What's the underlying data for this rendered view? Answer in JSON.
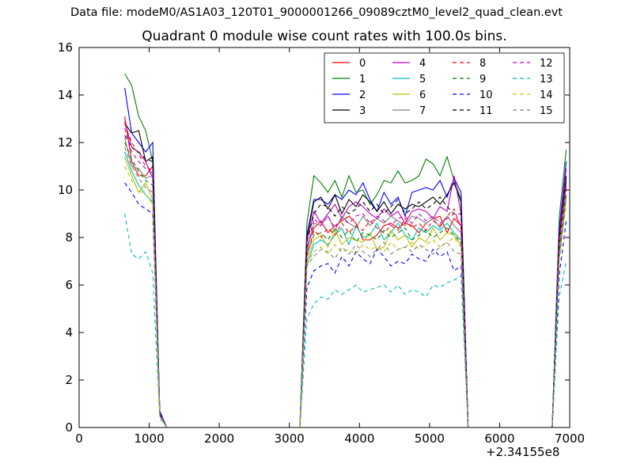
{
  "figure": {
    "suptitle": "Data file: modeM0/AS1A03_120T01_9000001266_09089cztM0_level2_quad_clean.evt",
    "title": "Quadrant 0 module wise count rates with 100.0s bins.",
    "offset_text": "+2.34155e8"
  },
  "chart_data": {
    "type": "line",
    "xlim": [
      0,
      7000
    ],
    "ylim": [
      0,
      16
    ],
    "x_ticks": [
      "0",
      "1000",
      "2000",
      "3000",
      "4000",
      "5000",
      "6000",
      "7000"
    ],
    "y_ticks": [
      "0",
      "2",
      "4",
      "6",
      "8",
      "10",
      "12",
      "14",
      "16"
    ],
    "x_offset": "+2.34155e8",
    "legend_position": "top-right",
    "grid": false,
    "segments": {
      "a": [
        650,
        750,
        850,
        950,
        1050,
        1150,
        1250
      ],
      "b": [
        3150,
        3250,
        3350,
        3450,
        3550,
        3650,
        3750,
        3850,
        3950,
        4050,
        4150,
        4250,
        4350,
        4450,
        4550,
        4650,
        4750,
        4850,
        4950,
        5050,
        5150,
        5250,
        5350,
        5450,
        5550
      ],
      "c": [
        6750,
        6850,
        6950
      ]
    },
    "gap_x": [
      1270,
      3130,
      5570,
      6730
    ],
    "series": [
      {
        "name": "0",
        "color": "#ff0000",
        "dash": false,
        "a": [
          13.1,
          11.2,
          10.6,
          10.6,
          11.0,
          0.6,
          0.0
        ],
        "b": [
          0.0,
          7.6,
          8.4,
          8.7,
          8.2,
          8.5,
          8.7,
          8.9,
          8.6,
          7.9,
          7.9,
          8.1,
          8.5,
          8.6,
          8.4,
          8.6,
          8.5,
          8.2,
          8.6,
          8.8,
          8.9,
          8.2,
          8.8,
          8.5,
          0.0
        ],
        "c": [
          0.0,
          7.9,
          10.5
        ]
      },
      {
        "name": "1",
        "color": "#008000",
        "dash": false,
        "a": [
          14.9,
          14.4,
          13.1,
          12.5,
          11.2,
          0.6,
          0.0
        ],
        "b": [
          0.0,
          8.6,
          10.6,
          10.3,
          9.9,
          10.4,
          9.7,
          10.6,
          9.9,
          10.0,
          9.4,
          9.8,
          10.4,
          10.3,
          10.8,
          10.3,
          10.4,
          10.6,
          11.3,
          11.1,
          10.6,
          11.4,
          10.4,
          9.6,
          0.0
        ],
        "c": [
          0.0,
          8.8,
          11.7
        ]
      },
      {
        "name": "2",
        "color": "#0000ff",
        "dash": false,
        "a": [
          14.3,
          12.4,
          12.0,
          11.6,
          12.0,
          0.7,
          0.0
        ],
        "b": [
          0.0,
          8.1,
          9.6,
          9.6,
          9.4,
          9.8,
          9.6,
          10.0,
          9.8,
          10.3,
          9.6,
          9.1,
          9.9,
          9.4,
          9.7,
          8.9,
          9.9,
          10.0,
          10.1,
          10.0,
          10.4,
          9.7,
          10.5,
          9.9,
          0.0
        ],
        "c": [
          0.0,
          8.3,
          11.2
        ]
      },
      {
        "name": "3",
        "color": "#000000",
        "dash": false,
        "a": [
          12.8,
          12.4,
          12.5,
          11.2,
          11.4,
          0.6,
          0.0
        ],
        "b": [
          0.0,
          8.0,
          9.5,
          9.7,
          9.2,
          9.8,
          9.0,
          9.6,
          9.3,
          9.8,
          9.5,
          9.1,
          9.5,
          9.0,
          9.4,
          9.2,
          9.4,
          9.3,
          9.5,
          9.7,
          9.4,
          9.8,
          10.3,
          9.5,
          0.0
        ],
        "c": [
          0.0,
          8.0,
          10.4
        ]
      },
      {
        "name": "4",
        "color": "#bf00bf",
        "dash": false,
        "a": [
          12.9,
          11.8,
          11.6,
          11.2,
          10.5,
          0.6,
          0.0
        ],
        "b": [
          0.0,
          7.9,
          9.1,
          8.6,
          9.0,
          9.4,
          8.8,
          9.3,
          9.5,
          9.3,
          9.0,
          8.8,
          9.2,
          8.9,
          9.1,
          8.6,
          9.1,
          9.2,
          9.1,
          8.8,
          9.3,
          9.1,
          10.6,
          9.0,
          0.0
        ],
        "c": [
          0.0,
          8.1,
          10.9
        ]
      },
      {
        "name": "5",
        "color": "#00bfbf",
        "dash": false,
        "a": [
          11.6,
          10.8,
          10.2,
          9.8,
          9.5,
          0.5,
          0.0
        ],
        "b": [
          0.0,
          6.8,
          7.7,
          7.9,
          7.7,
          8.1,
          8.4,
          7.7,
          8.5,
          8.0,
          8.1,
          8.6,
          7.9,
          8.2,
          8.6,
          8.1,
          7.9,
          8.4,
          8.2,
          8.5,
          8.3,
          8.6,
          8.2,
          7.9,
          0.0
        ],
        "c": [
          0.0,
          7.3,
          9.8
        ]
      },
      {
        "name": "6",
        "color": "#bfbf00",
        "dash": false,
        "a": [
          11.4,
          10.6,
          9.9,
          10.3,
          9.6,
          0.5,
          0.0
        ],
        "b": [
          0.0,
          7.0,
          7.9,
          8.1,
          7.6,
          8.3,
          7.7,
          8.0,
          7.9,
          7.8,
          8.2,
          7.5,
          7.6,
          8.3,
          7.9,
          8.1,
          7.6,
          8.0,
          7.8,
          8.4,
          7.9,
          8.2,
          8.1,
          7.7,
          0.0
        ],
        "c": [
          0.0,
          7.1,
          9.6
        ]
      },
      {
        "name": "7",
        "color": "#808080",
        "dash": false,
        "a": [
          12.2,
          11.0,
          10.9,
          10.5,
          10.6,
          0.6,
          0.0
        ],
        "b": [
          0.0,
          7.4,
          8.6,
          8.5,
          8.9,
          8.3,
          8.9,
          8.6,
          8.4,
          8.9,
          8.5,
          8.8,
          8.6,
          8.9,
          8.7,
          8.5,
          8.9,
          8.8,
          8.6,
          8.8,
          8.4,
          8.9,
          8.5,
          8.2,
          0.0
        ],
        "c": [
          0.0,
          7.7,
          10.2
        ]
      },
      {
        "name": "8",
        "color": "#ff0000",
        "dash": true,
        "a": [
          12.8,
          12.0,
          11.5,
          11.0,
          10.8,
          0.6,
          0.0
        ],
        "b": [
          0.0,
          7.2,
          8.3,
          8.0,
          8.4,
          8.1,
          8.6,
          8.2,
          8.5,
          8.3,
          8.7,
          8.4,
          8.2,
          8.5,
          8.3,
          8.8,
          8.4,
          8.6,
          8.3,
          8.7,
          8.5,
          8.9,
          9.2,
          8.4,
          0.0
        ],
        "c": [
          0.0,
          7.6,
          10.1
        ]
      },
      {
        "name": "9",
        "color": "#008000",
        "dash": true,
        "a": [
          12.0,
          11.3,
          10.8,
          10.4,
          10.2,
          0.6,
          0.0
        ],
        "b": [
          0.0,
          7.3,
          8.1,
          8.2,
          7.9,
          8.4,
          8.0,
          8.3,
          7.8,
          8.2,
          8.1,
          7.9,
          8.3,
          8.0,
          8.2,
          8.4,
          7.9,
          8.1,
          8.3,
          8.0,
          8.2,
          8.4,
          8.1,
          7.8,
          0.0
        ],
        "c": [
          0.0,
          7.4,
          9.9
        ]
      },
      {
        "name": "10",
        "color": "#0000ff",
        "dash": true,
        "a": [
          10.3,
          9.9,
          9.4,
          9.2,
          9.0,
          0.5,
          0.0
        ],
        "b": [
          0.0,
          5.9,
          6.6,
          6.8,
          6.9,
          6.5,
          7.2,
          6.8,
          7.4,
          7.1,
          6.9,
          7.5,
          7.2,
          6.8,
          7.0,
          6.9,
          7.3,
          7.1,
          7.0,
          7.5,
          7.2,
          7.4,
          6.6,
          6.8,
          0.0
        ],
        "c": [
          0.0,
          6.4,
          8.7
        ]
      },
      {
        "name": "11",
        "color": "#000000",
        "dash": true,
        "a": [
          12.3,
          11.8,
          11.6,
          11.3,
          11.2,
          0.6,
          0.0
        ],
        "b": [
          0.0,
          7.8,
          9.0,
          9.4,
          9.3,
          8.9,
          9.3,
          9.0,
          9.2,
          9.5,
          9.1,
          9.4,
          9.0,
          9.3,
          9.6,
          9.0,
          9.2,
          9.5,
          9.2,
          9.4,
          9.7,
          9.3,
          9.0,
          9.0,
          0.0
        ],
        "c": [
          0.0,
          7.9,
          10.6
        ]
      },
      {
        "name": "12",
        "color": "#bf00bf",
        "dash": true,
        "a": [
          12.6,
          11.6,
          11.2,
          10.9,
          10.7,
          0.6,
          0.0
        ],
        "b": [
          0.0,
          7.5,
          8.8,
          8.5,
          8.9,
          8.4,
          8.8,
          8.6,
          8.9,
          9.0,
          8.6,
          8.9,
          8.7,
          8.5,
          8.8,
          8.9,
          8.6,
          9.0,
          8.7,
          8.9,
          8.6,
          8.8,
          9.0,
          8.5,
          0.0
        ],
        "c": [
          0.0,
          7.8,
          10.3
        ]
      },
      {
        "name": "13",
        "color": "#00bfbf",
        "dash": true,
        "a": [
          9.0,
          7.3,
          7.1,
          7.4,
          6.5,
          0.4,
          0.0
        ],
        "b": [
          0.0,
          4.6,
          5.2,
          5.5,
          5.4,
          5.8,
          5.6,
          5.8,
          6.0,
          5.7,
          5.8,
          5.9,
          6.0,
          5.7,
          6.0,
          5.6,
          5.8,
          5.7,
          5.5,
          6.0,
          5.9,
          6.1,
          6.2,
          6.4,
          0.0
        ],
        "c": [
          0.0,
          5.5,
          7.0
        ]
      },
      {
        "name": "14",
        "color": "#bfbf00",
        "dash": true,
        "a": [
          11.0,
          10.4,
          10.0,
          9.8,
          9.4,
          0.5,
          0.0
        ],
        "b": [
          0.0,
          6.9,
          7.4,
          7.6,
          7.3,
          7.7,
          7.4,
          7.5,
          7.3,
          7.7,
          7.5,
          7.6,
          7.4,
          7.8,
          7.5,
          7.6,
          7.8,
          7.5,
          7.7,
          7.9,
          7.6,
          7.8,
          8.0,
          7.6,
          0.0
        ],
        "c": [
          0.0,
          7.0,
          9.4
        ]
      },
      {
        "name": "15",
        "color": "#808080",
        "dash": true,
        "a": [
          11.8,
          11.0,
          10.5,
          10.1,
          9.9,
          0.5,
          0.0
        ],
        "b": [
          0.0,
          6.8,
          7.2,
          7.5,
          7.4,
          7.1,
          7.6,
          7.3,
          7.7,
          7.4,
          7.2,
          7.5,
          7.8,
          7.3,
          7.5,
          7.6,
          7.4,
          7.7,
          7.5,
          7.3,
          7.6,
          7.8,
          7.4,
          7.3,
          0.0
        ],
        "c": [
          0.0,
          7.2,
          9.7
        ]
      }
    ]
  }
}
